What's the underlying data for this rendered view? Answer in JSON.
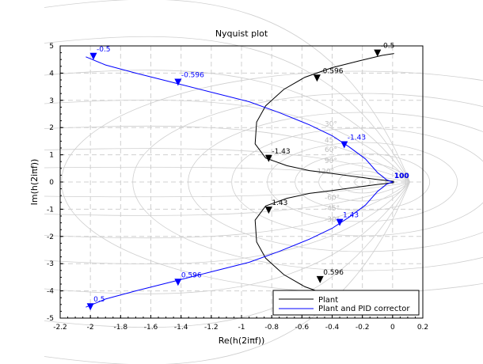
{
  "chart_data": {
    "type": "line",
    "title": "Nyquist plot",
    "xlabel": "Re(h(2iπf))",
    "ylabel": "Im(h(2iπf))",
    "xlim": [
      -2.2,
      0.2
    ],
    "ylim": [
      -5,
      5
    ],
    "x_ticks": [
      -2.2,
      -2,
      -1.8,
      -1.6,
      -1.4,
      -1.2,
      -1,
      -0.8,
      -0.6,
      -0.4,
      -0.2,
      0,
      0.2
    ],
    "y_ticks": [
      -5,
      -4,
      -3,
      -2,
      -1,
      0,
      1,
      2,
      3,
      4,
      5
    ],
    "grid": true,
    "legend_position": "bottom-right",
    "series": [
      {
        "name": "Plant",
        "color": "#000000",
        "points": [
          [
            0.01,
            0.02
          ],
          [
            -0.1,
            0.09
          ],
          [
            -0.25,
            0.2
          ],
          [
            -0.4,
            0.31
          ],
          [
            -0.55,
            0.42
          ],
          [
            -0.7,
            0.6
          ],
          [
            -0.84,
            0.88
          ],
          [
            -0.91,
            1.4
          ],
          [
            -0.9,
            2.2
          ],
          [
            -0.84,
            2.8
          ],
          [
            -0.72,
            3.4
          ],
          [
            -0.58,
            3.85
          ],
          [
            -0.4,
            4.2
          ],
          [
            -0.22,
            4.45
          ],
          [
            -0.07,
            4.65
          ],
          [
            0.01,
            4.72
          ],
          [
            0.01,
            -0.02
          ],
          [
            -0.1,
            -0.09
          ],
          [
            -0.25,
            -0.2
          ],
          [
            -0.4,
            -0.31
          ],
          [
            -0.55,
            -0.42
          ],
          [
            -0.7,
            -0.6
          ],
          [
            -0.84,
            -0.88
          ],
          [
            -0.91,
            -1.4
          ],
          [
            -0.9,
            -2.2
          ],
          [
            -0.84,
            -2.8
          ],
          [
            -0.72,
            -3.4
          ],
          [
            -0.58,
            -3.85
          ],
          [
            -0.4,
            -4.2
          ],
          [
            -0.22,
            -4.45
          ],
          [
            -0.07,
            -4.65
          ],
          [
            0.01,
            -4.72
          ]
        ],
        "labels": [
          {
            "text": "-0.5",
            "x": -0.1,
            "y": 4.72
          },
          {
            "text": "-0.596",
            "x": -0.5,
            "y": 3.8
          },
          {
            "text": "-1.43",
            "x": -0.82,
            "y": 0.85
          },
          {
            "text": "100",
            "x": 0,
            "y": 0
          },
          {
            "text": "1.43",
            "x": -0.82,
            "y": -1.05
          },
          {
            "text": "0.596",
            "x": -0.48,
            "y": -3.6
          },
          {
            "text": "0.5",
            "x": -0.12,
            "y": -4.6
          }
        ]
      },
      {
        "name": "Plant and PID corrector",
        "color": "#0000ff",
        "points": [
          [
            -2.03,
            4.6
          ],
          [
            -1.9,
            4.3
          ],
          [
            -1.7,
            4.0
          ],
          [
            -1.45,
            3.65
          ],
          [
            -1.2,
            3.3
          ],
          [
            -0.95,
            2.95
          ],
          [
            -0.75,
            2.55
          ],
          [
            -0.55,
            2.1
          ],
          [
            -0.4,
            1.7
          ],
          [
            -0.29,
            1.3
          ],
          [
            -0.18,
            0.85
          ],
          [
            -0.1,
            0.35
          ],
          [
            -0.04,
            0.08
          ],
          [
            0.0,
            0.0
          ],
          [
            -0.04,
            -0.08
          ],
          [
            -0.1,
            -0.35
          ],
          [
            -0.18,
            -0.85
          ],
          [
            -0.29,
            -1.3
          ],
          [
            -0.4,
            -1.7
          ],
          [
            -0.55,
            -2.1
          ],
          [
            -0.75,
            -2.55
          ],
          [
            -0.95,
            -2.95
          ],
          [
            -1.2,
            -3.3
          ],
          [
            -1.45,
            -3.65
          ],
          [
            -1.7,
            -4.0
          ],
          [
            -1.9,
            -4.3
          ],
          [
            -2.03,
            -4.6
          ]
        ],
        "labels": [
          {
            "text": "-0.5",
            "x": -1.98,
            "y": 4.6
          },
          {
            "text": "-0.596",
            "x": -1.42,
            "y": 3.65
          },
          {
            "text": "-1.43",
            "x": -0.32,
            "y": 1.35
          },
          {
            "text": "100",
            "x": 0,
            "y": 0
          },
          {
            "text": "1.43",
            "x": -0.35,
            "y": -1.5
          },
          {
            "text": "0.596",
            "x": -1.42,
            "y": -3.7
          },
          {
            "text": "0.5",
            "x": -2.0,
            "y": -4.6
          }
        ]
      }
    ],
    "grid_curve_labels": [
      "30°",
      "45°",
      "60°",
      "90°",
      "120°",
      "-60°",
      "-45°",
      "-30°"
    ]
  }
}
